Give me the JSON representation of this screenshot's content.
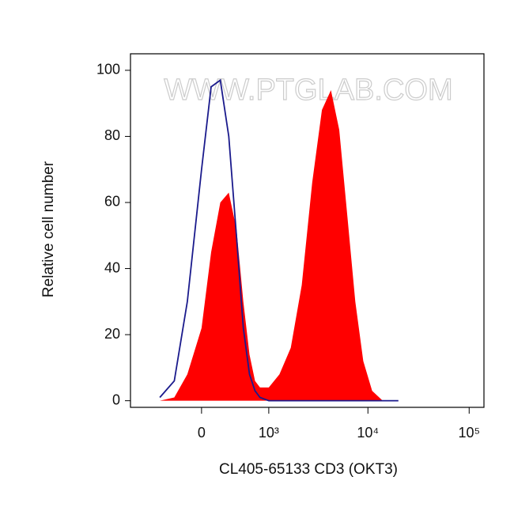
{
  "chart_data": {
    "type": "histogram-overlay",
    "watermark": "WWW.PTGLAB.COM",
    "x_label": "CL405-65133 CD3 (OKT3)",
    "y_label": "Relative cell number",
    "xscale": "biexponential",
    "xlim": [
      -1100,
      140000
    ],
    "ylim": [
      -2,
      105
    ],
    "xticks": [
      0,
      {
        "value": 1000,
        "label": "10³"
      },
      {
        "value": 10000,
        "label": "10⁴"
      },
      {
        "value": 100000,
        "label": "10⁵"
      }
    ],
    "yticks": [
      0,
      20,
      40,
      60,
      80,
      100
    ],
    "x": [
      -500,
      -300,
      -150,
      0,
      100,
      200,
      300,
      400,
      500,
      600,
      700,
      800,
      1000,
      1300,
      1700,
      2200,
      2800,
      3500,
      4300,
      5200,
      6300,
      7500,
      9000,
      11000,
      14000,
      20000
    ],
    "series": [
      {
        "color": "#ff0000",
        "style": "area",
        "values": [
          0,
          1,
          8,
          22,
          45,
          60,
          63,
          52,
          30,
          14,
          6,
          4,
          4,
          8,
          16,
          35,
          66,
          88,
          94,
          82,
          55,
          30,
          12,
          3,
          0,
          0
        ]
      },
      {
        "color": "#1a1a8c",
        "style": "line",
        "values": [
          1,
          6,
          30,
          70,
          95,
          97,
          80,
          50,
          22,
          8,
          3,
          1,
          0,
          0,
          0,
          0,
          0,
          0,
          0,
          0,
          0,
          0,
          0,
          0,
          0,
          0
        ]
      }
    ]
  }
}
